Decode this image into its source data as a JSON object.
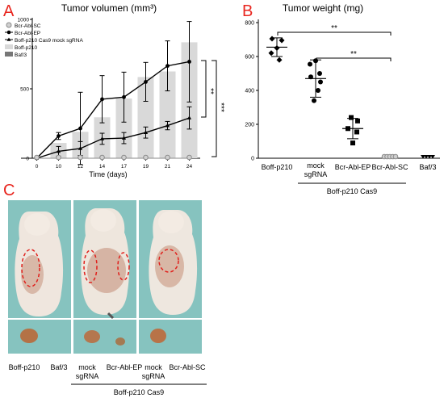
{
  "panels": {
    "a": {
      "letter": "A",
      "color": "#e8261f"
    },
    "b": {
      "letter": "B",
      "color": "#e8261f"
    },
    "c": {
      "letter": "C",
      "color": "#e8261f"
    }
  },
  "chart_data": [
    {
      "type": "line",
      "panel": "A",
      "title": "Tumor volumen (mm³)",
      "xlabel": "Time (days)",
      "ylabel": "",
      "categories": [
        "0",
        "10",
        "12",
        "14",
        "17",
        "19",
        "21",
        "24"
      ],
      "yticks": [
        "0",
        "500",
        "1000"
      ],
      "ylim": [
        0,
        1000
      ],
      "legend": [
        {
          "name": "Bcr-Abl-SC",
          "marker": "open-circle",
          "color": "#9a9a9a"
        },
        {
          "name": "Bcr-Abl-EP",
          "marker": "filled-circle",
          "color": "#000000"
        },
        {
          "name": "Boff-p210 Cas9 mock sgRNA",
          "marker": "filled-triangle",
          "color": "#000000"
        },
        {
          "name": "Boff-p210",
          "marker": "bar",
          "color": "#d9d9d9"
        },
        {
          "name": "Baf/3",
          "marker": "bar",
          "color": "#777777"
        }
      ],
      "bars": {
        "name": "Boff-p210",
        "color": "#d9d9d9",
        "values": [
          0,
          110,
          190,
          295,
          430,
          585,
          625,
          835
        ]
      },
      "series": [
        {
          "name": "Bcr-Abl-EP",
          "marker": "filled-circle",
          "values": [
            0,
            160,
            215,
            425,
            440,
            550,
            665,
            695
          ],
          "err": [
            0,
            25,
            260,
            170,
            180,
            140,
            180,
            290
          ]
        },
        {
          "name": "Boff-p210 Cas9 mock sgRNA",
          "marker": "filled-triangle",
          "values": [
            0,
            50,
            70,
            140,
            145,
            185,
            235,
            290
          ],
          "err": [
            0,
            35,
            50,
            40,
            40,
            40,
            30,
            80
          ]
        },
        {
          "name": "Bcr-Abl-SC",
          "marker": "open-circle",
          "values": [
            0,
            0,
            0,
            0,
            0,
            0,
            0,
            0
          ],
          "err": [
            0,
            0,
            0,
            0,
            0,
            0,
            0,
            0
          ]
        }
      ],
      "significance": [
        "**",
        "***"
      ]
    },
    {
      "type": "scatter",
      "panel": "B",
      "title": "Tumor weight (mg)",
      "ylim": [
        0,
        800
      ],
      "yticks": [
        "0",
        "200",
        "400",
        "600",
        "800"
      ],
      "categories": [
        "Boff-p210",
        "mock sgRNA",
        "Bcr-Abl-EP",
        "Bcr-Abl-SC",
        "Baf/3"
      ],
      "group_label": "Boff-p210 Cas9",
      "groups": [
        {
          "name": "Boff-p210",
          "marker": "diamond",
          "points": [
            705,
            695,
            650,
            620,
            580
          ],
          "mean": 655,
          "sd": 55
        },
        {
          "name": "mock sgRNA",
          "marker": "circle",
          "points": [
            575,
            555,
            500,
            480,
            450,
            400,
            340
          ],
          "mean": 470,
          "sd": 110
        },
        {
          "name": "Bcr-Abl-EP",
          "marker": "square",
          "points": [
            240,
            220,
            175,
            155,
            90
          ],
          "mean": 175,
          "sd": 60
        },
        {
          "name": "Bcr-Abl-SC",
          "marker": "open-circle",
          "points": [
            0,
            0,
            0,
            0,
            0
          ],
          "mean": 0,
          "sd": 0
        },
        {
          "name": "Baf/3",
          "marker": "triangle-down",
          "points": [
            0,
            0,
            0,
            0
          ],
          "mean": 0,
          "sd": 0
        }
      ],
      "significance": [
        {
          "label": "**",
          "from": "Boff-p210",
          "to": "Bcr-Abl-SC"
        },
        {
          "label": "**",
          "from": "mock sgRNA",
          "to": "Bcr-Abl-SC"
        }
      ]
    }
  ],
  "photos": {
    "labels": [
      "Boff-p210",
      "Baf/3",
      "mock sgRNA",
      "Bcr-Abl-EP",
      "mock sgRNA",
      "Bcr-Abl-SC"
    ],
    "group_label": "Boff-p210 Cas9"
  }
}
